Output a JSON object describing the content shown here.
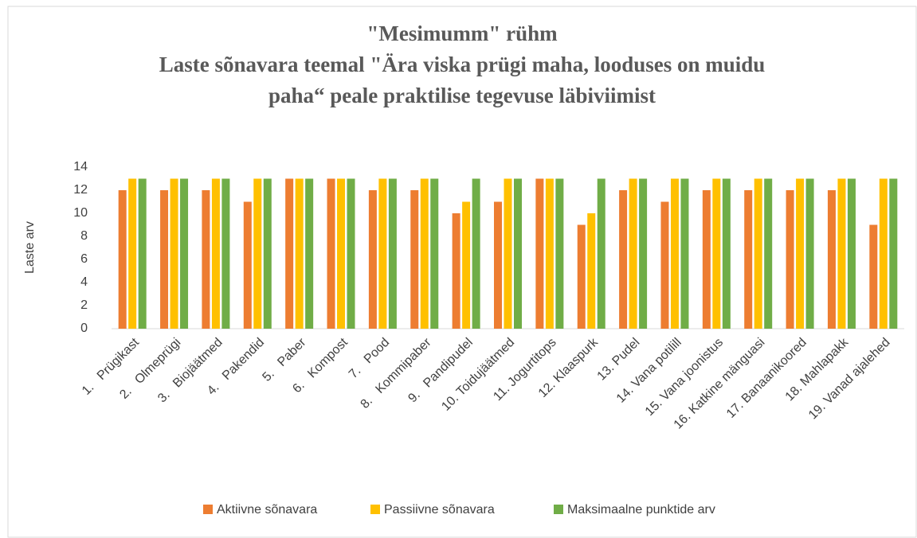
{
  "chart_data": {
    "type": "bar",
    "title": [
      "\"Mesimumm\" rühm",
      "Laste sõnavara teemal \"Ära viska prügi maha, looduses on muidu",
      "paha“ peale praktilise tegevuse läbiviimist"
    ],
    "y_label": "Laste arv",
    "categories": [
      "1.   Prügikast",
      "2.   Olmeprügi",
      "3.   Biojäätmed",
      "4.   Pakendid",
      "5.   Paber",
      "6.   Kompost",
      "7.   Pood",
      "8.   Kommipaber",
      "9.   Pandipudel",
      "10. Toidujäätmed",
      "11. Jogurtitops",
      "12. Klaaspurk",
      "13. Pudel",
      "14. Vana potilill",
      "15. Vana joonistus",
      "16. Katkine mänguasi",
      "17. Banaanikoored",
      "18. Mahlapakk",
      "19. Vanad ajalehed"
    ],
    "series": [
      {
        "name": "Aktiivne sõnavara",
        "color": "#ED7D31",
        "values": [
          12,
          12,
          12,
          11,
          13,
          13,
          12,
          12,
          10,
          11,
          13,
          9,
          12,
          11,
          12,
          12,
          12,
          12,
          9
        ]
      },
      {
        "name": "Passiivne sõnavara",
        "color": "#FFC000",
        "values": [
          13,
          13,
          13,
          13,
          13,
          13,
          13,
          13,
          11,
          13,
          13,
          10,
          13,
          13,
          13,
          13,
          13,
          13,
          13
        ]
      },
      {
        "name": "Maksimaalne punktide arv",
        "color": "#70AD47",
        "values": [
          13,
          13,
          13,
          13,
          13,
          13,
          13,
          13,
          13,
          13,
          13,
          13,
          13,
          13,
          13,
          13,
          13,
          13,
          13
        ]
      }
    ],
    "ylim": [
      0,
      14
    ],
    "yticks": [
      0,
      2,
      4,
      6,
      8,
      10,
      12,
      14
    ],
    "grid": false,
    "legend": "bottom"
  }
}
